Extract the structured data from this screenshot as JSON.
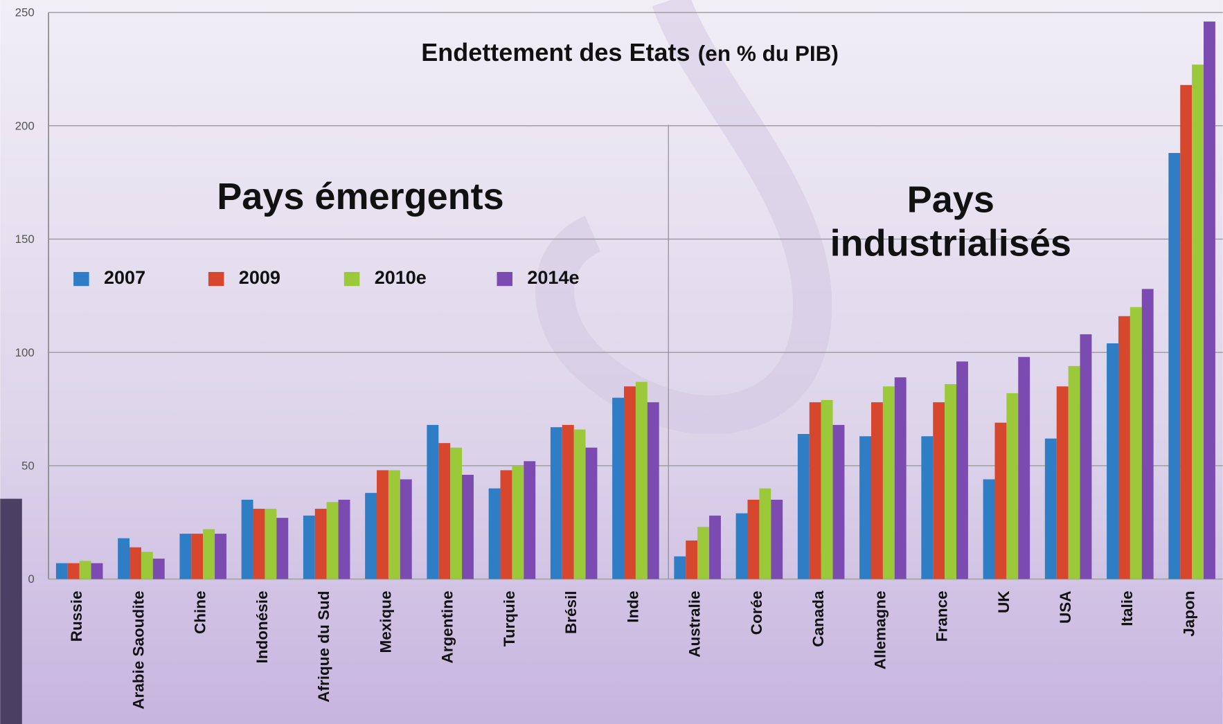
{
  "chart_data": {
    "type": "bar",
    "title": "Endettement des Etats",
    "subtitle": "(en % du PIB)",
    "annotations": {
      "emerging": "Pays émergents",
      "industrial": [
        "Pays",
        "industrialisés"
      ]
    },
    "categories": [
      "Russie",
      "Arabie Saoudite",
      "Chine",
      "Indonésie",
      "Afrique du Sud",
      "Mexique",
      "Argentine",
      "Turquie",
      "Brésil",
      "Inde",
      "Australie",
      "Corée",
      "Canada",
      "Allemagne",
      "France",
      "UK",
      "USA",
      "Italie",
      "Japon"
    ],
    "series": [
      {
        "name": "2007",
        "color": "#2f7dc4",
        "values": [
          7,
          18,
          20,
          35,
          28,
          38,
          68,
          40,
          67,
          80,
          10,
          29,
          64,
          63,
          63,
          44,
          62,
          104,
          188
        ]
      },
      {
        "name": "2009",
        "color": "#d6472d",
        "values": [
          7,
          14,
          20,
          31,
          31,
          48,
          60,
          48,
          68,
          85,
          17,
          35,
          78,
          78,
          78,
          69,
          85,
          116,
          218
        ]
      },
      {
        "name": "2010e",
        "color": "#9cc93a",
        "values": [
          8,
          12,
          22,
          31,
          34,
          48,
          58,
          50,
          66,
          87,
          23,
          40,
          79,
          85,
          86,
          82,
          94,
          120,
          227
        ]
      },
      {
        "name": "2014e",
        "color": "#7b4bb2",
        "values": [
          7,
          9,
          20,
          27,
          35,
          44,
          46,
          52,
          58,
          78,
          28,
          35,
          68,
          89,
          96,
          98,
          108,
          128,
          246
        ]
      }
    ],
    "ylim": [
      0,
      250
    ],
    "yticks": [
      0,
      50,
      100,
      150,
      200,
      250
    ],
    "grid": true
  }
}
